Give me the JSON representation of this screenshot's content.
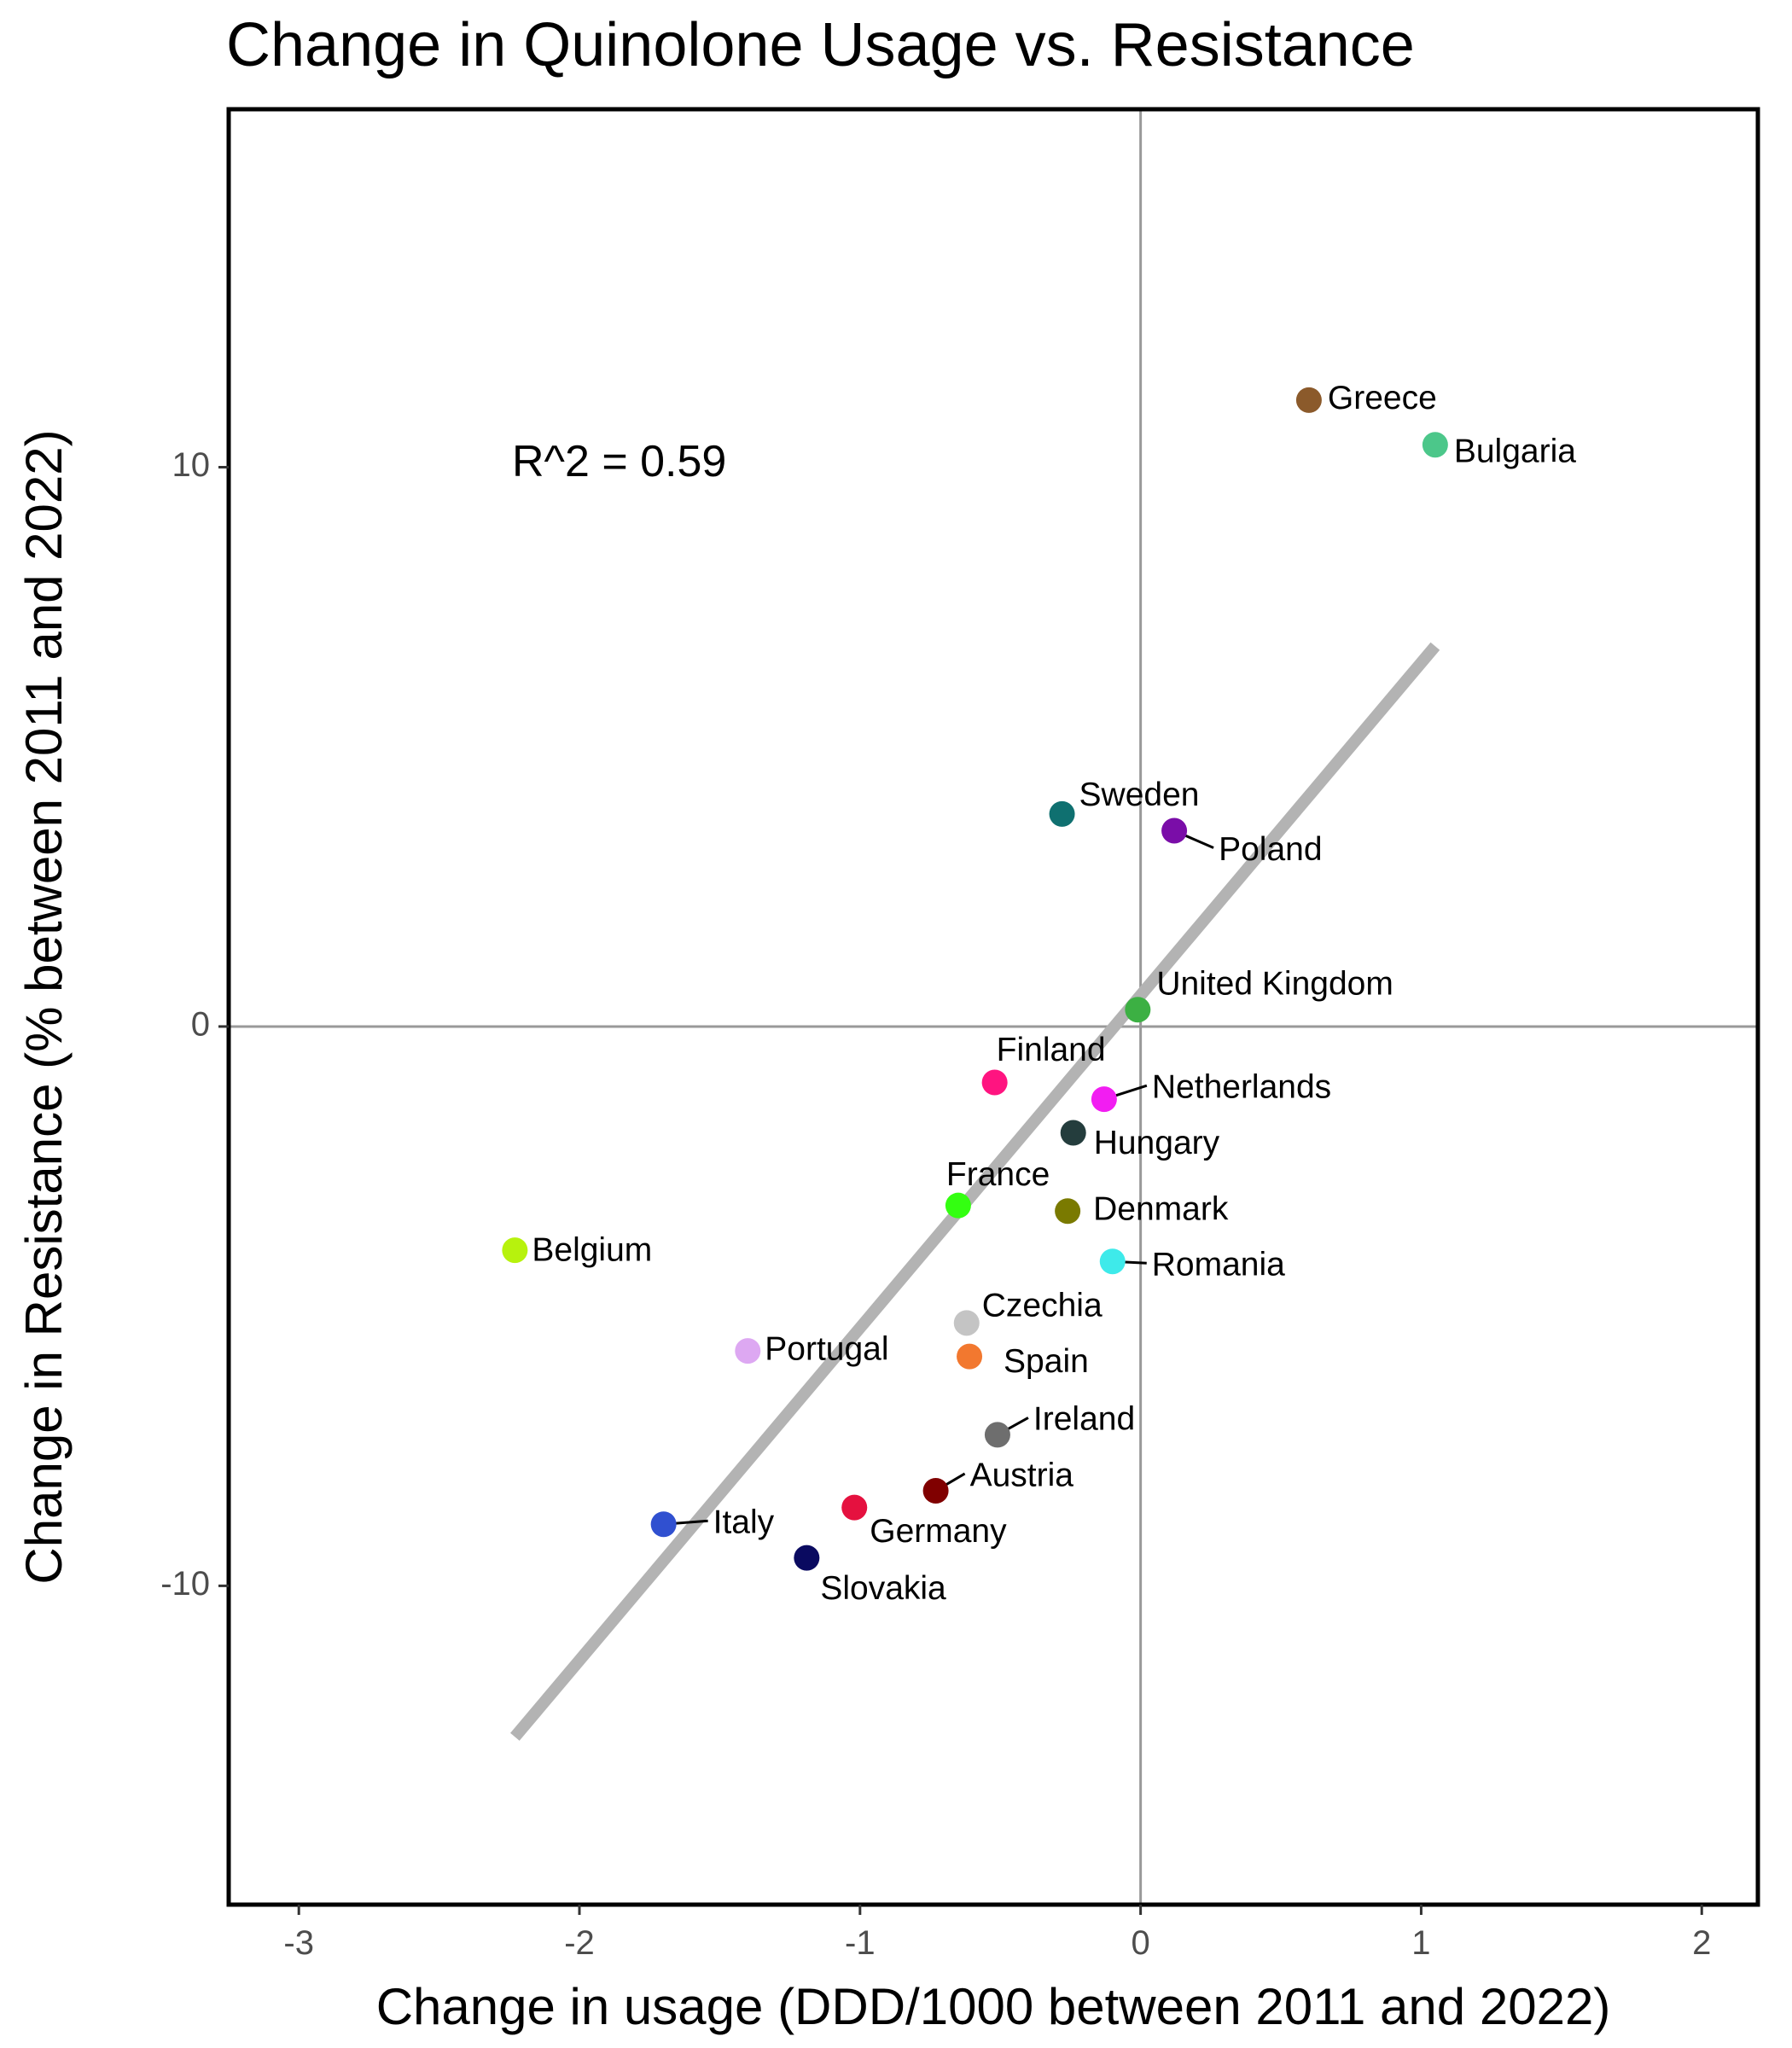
{
  "chart_data": {
    "type": "scatter",
    "title": "Change in Quinolone Usage vs. Resistance",
    "xlabel": "Change in usage (DDD/1000 between 2011 and 2022)",
    "ylabel": "Change in Resistance (% between 2011 and 2022)",
    "xlim": [
      -3.25,
      2.2
    ],
    "ylim": [
      -15.7,
      16.4
    ],
    "xticks": [
      -3,
      -2,
      -1,
      0,
      1,
      2
    ],
    "yticks": [
      -10,
      0,
      10
    ],
    "reference_lines": {
      "x": 0,
      "y": 0
    },
    "annotation": "R^2 = 0.59",
    "trend_line": {
      "x": [
        -2.23,
        1.05
      ],
      "y": [
        -12.7,
        6.8
      ]
    },
    "points": [
      {
        "label": "Greece",
        "x": 0.6,
        "y": 11.2,
        "color": "#8B5A2B"
      },
      {
        "label": "Bulgaria",
        "x": 1.05,
        "y": 10.4,
        "color": "#4CC78A"
      },
      {
        "label": "Sweden",
        "x": -0.28,
        "y": 3.8,
        "color": "#0F7070"
      },
      {
        "label": "Poland",
        "x": 0.12,
        "y": 3.5,
        "color": "#7A0DA8"
      },
      {
        "label": "United Kingdom",
        "x": -0.01,
        "y": 0.3,
        "color": "#3CB043"
      },
      {
        "label": "Finland",
        "x": -0.52,
        "y": -1.0,
        "color": "#FF1480"
      },
      {
        "label": "Netherlands",
        "x": -0.13,
        "y": -1.3,
        "color": "#F21DF2"
      },
      {
        "label": "Hungary",
        "x": -0.24,
        "y": -1.9,
        "color": "#243D3D"
      },
      {
        "label": "France",
        "x": -0.65,
        "y": -3.2,
        "color": "#33FF11"
      },
      {
        "label": "Denmark",
        "x": -0.26,
        "y": -3.3,
        "color": "#7A7A00"
      },
      {
        "label": "Belgium",
        "x": -2.23,
        "y": -4.0,
        "color": "#B7F20D"
      },
      {
        "label": "Romania",
        "x": -0.1,
        "y": -4.2,
        "color": "#3EEAEA"
      },
      {
        "label": "Czechia",
        "x": -0.62,
        "y": -5.3,
        "color": "#C4C4C4"
      },
      {
        "label": "Spain",
        "x": -0.61,
        "y": -5.9,
        "color": "#F2782F"
      },
      {
        "label": "Portugal",
        "x": -1.4,
        "y": -5.8,
        "color": "#DDA8F2"
      },
      {
        "label": "Ireland",
        "x": -0.51,
        "y": -7.3,
        "color": "#6E6E6E"
      },
      {
        "label": "Austria",
        "x": -0.73,
        "y": -8.3,
        "color": "#800000"
      },
      {
        "label": "Germany",
        "x": -1.02,
        "y": -8.6,
        "color": "#E5113F"
      },
      {
        "label": "Italy",
        "x": -1.7,
        "y": -8.9,
        "color": "#3050D0"
      },
      {
        "label": "Slovakia",
        "x": -1.19,
        "y": -9.5,
        "color": "#0A0A60"
      }
    ]
  }
}
